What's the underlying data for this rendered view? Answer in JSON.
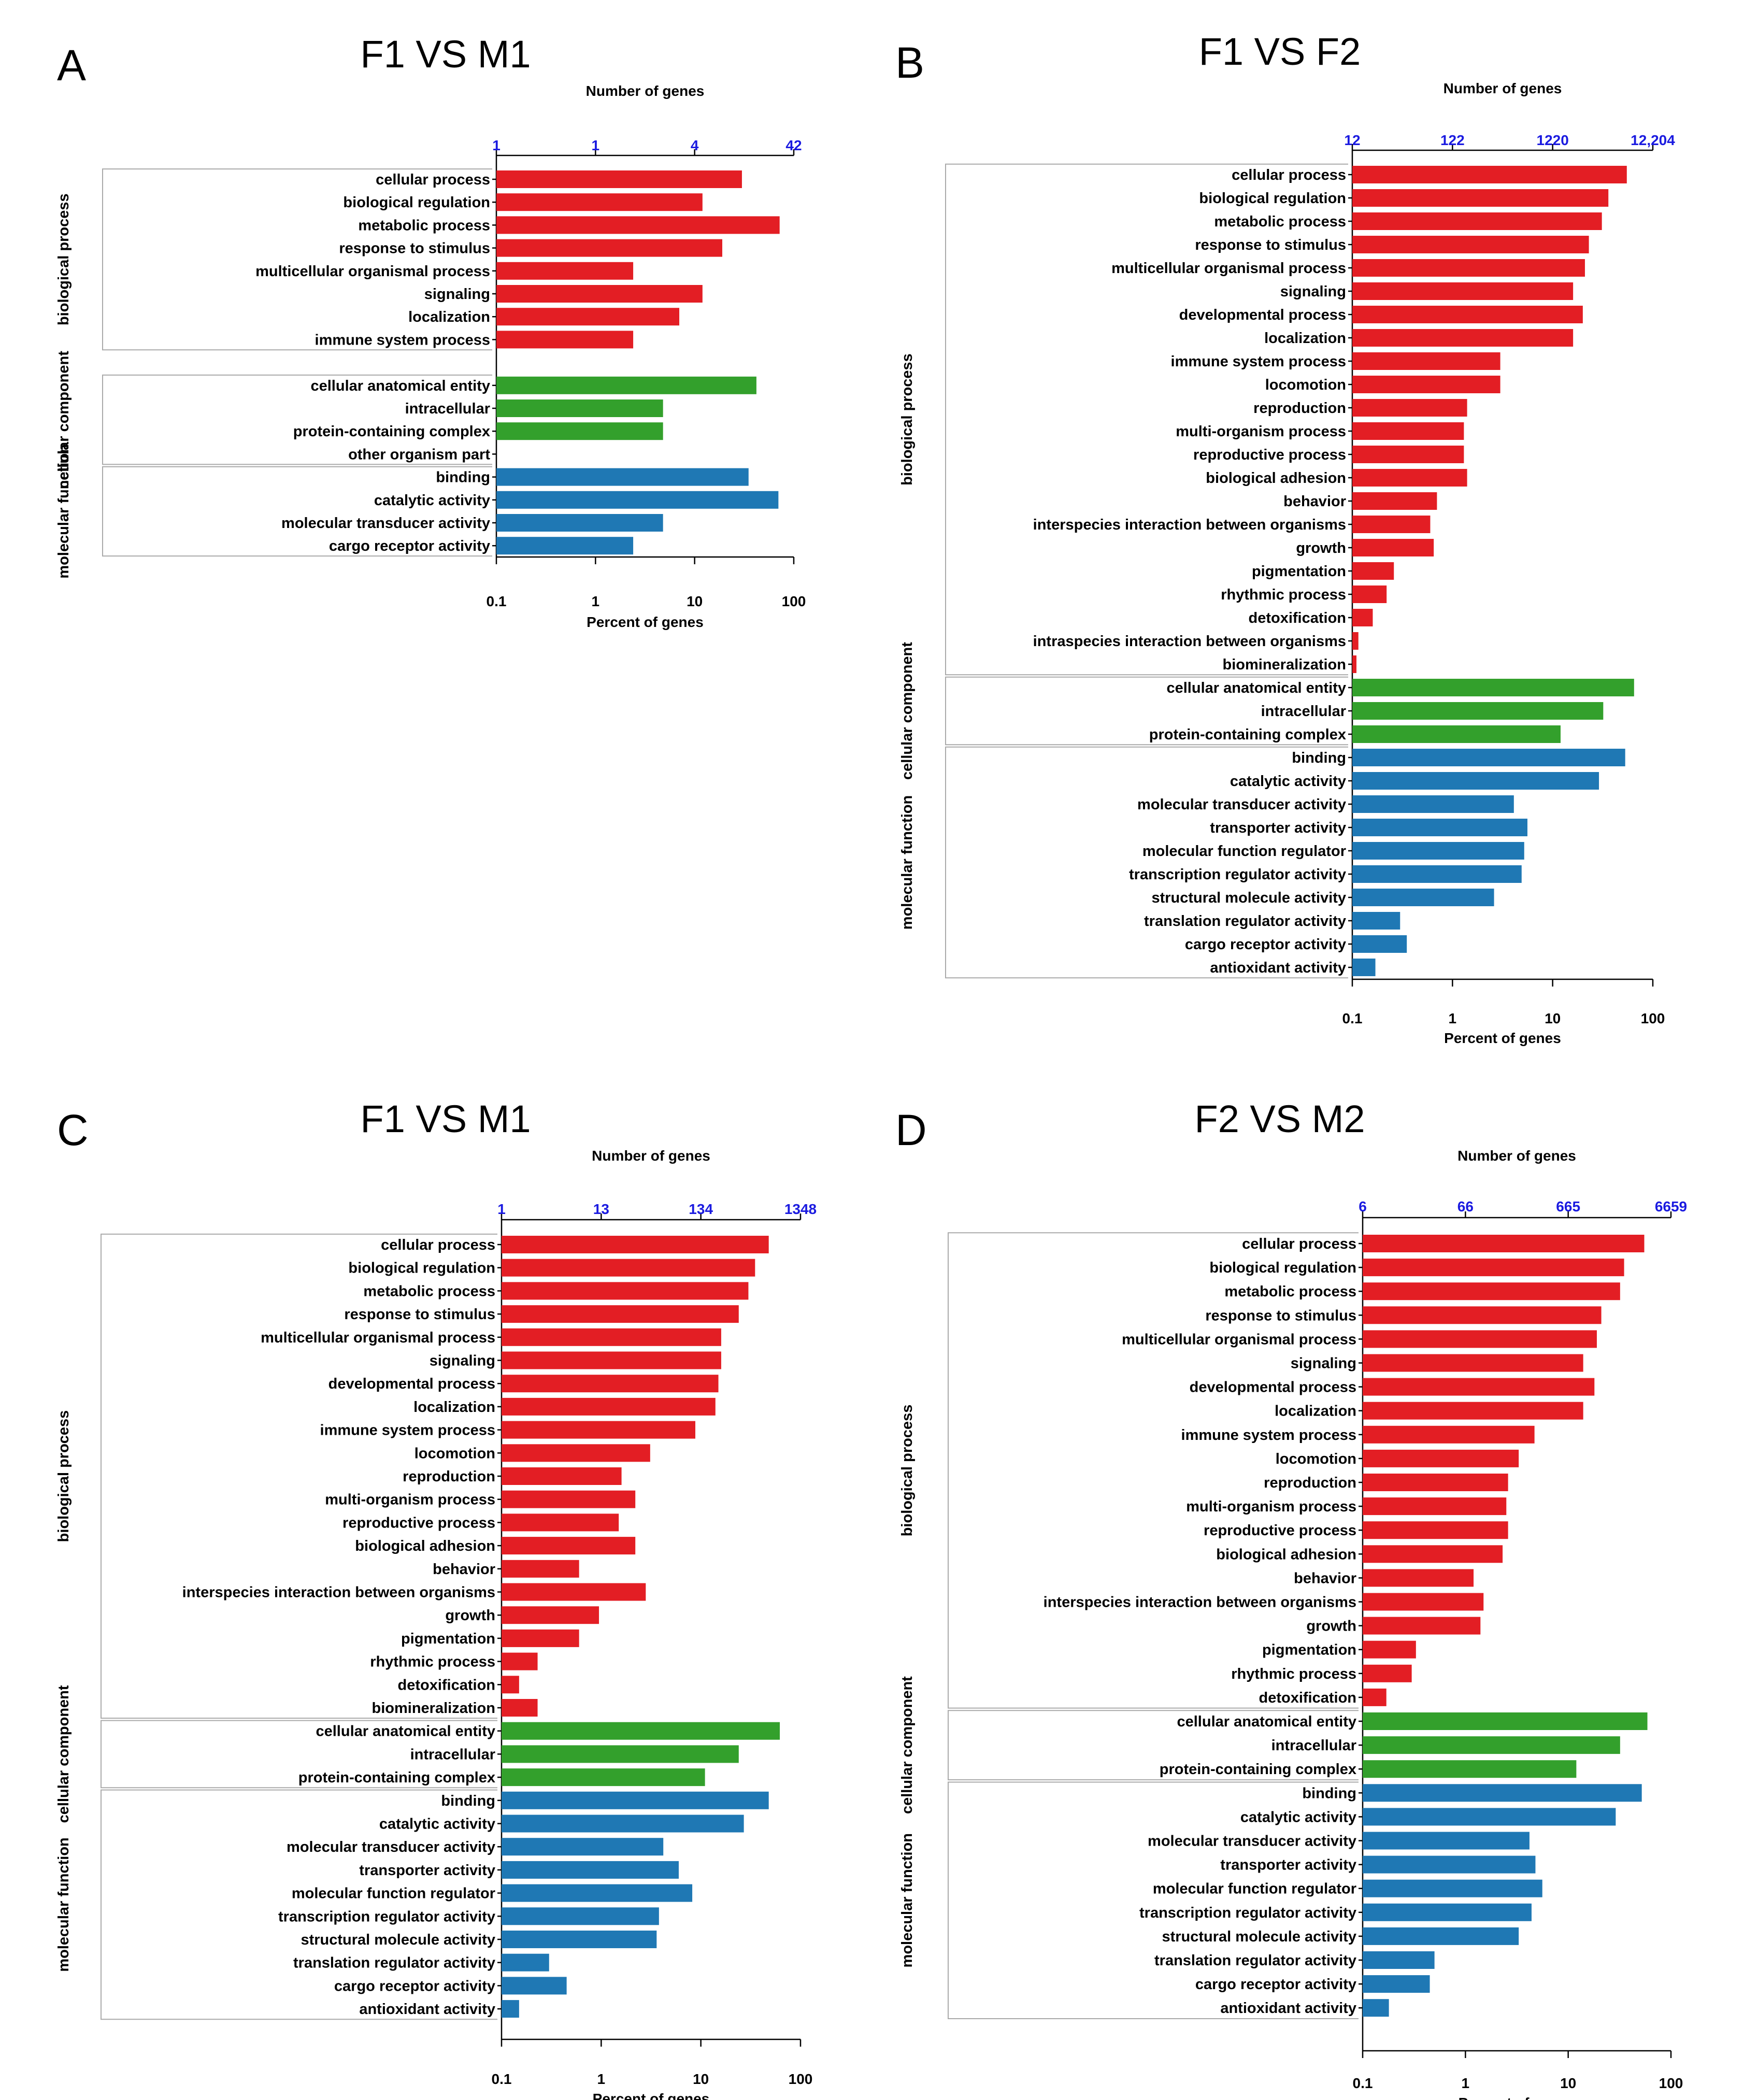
{
  "colors": {
    "biological process": "#e31e24",
    "cellular component": "#33a02c",
    "molecular function": "#1f78b4"
  },
  "chart_data": [
    {
      "type": "bar",
      "panel": "A",
      "title": "F1 VS M1",
      "xlabel": "Percent of genes",
      "x2label": "Number of genes",
      "xscale": "log",
      "xlim": [
        0.1,
        100
      ],
      "xticks": [
        "0.1",
        "1",
        "10",
        "100"
      ],
      "top_ticks": [
        "1",
        "1",
        "4",
        "42"
      ],
      "groups": [
        "biological process",
        "cellular component",
        "molecular function"
      ],
      "categories": [
        "cellular process",
        "biological regulation",
        "metabolic process",
        "response to stimulus",
        "multicellular organismal process",
        "signaling",
        "localization",
        "immune system process",
        "",
        "cellular anatomical entity",
        "intracellular",
        "protein-containing complex",
        "other organism part",
        "binding",
        "catalytic activity",
        "molecular transducer activity",
        "cargo receptor activity"
      ],
      "group_of": [
        "biological process",
        "biological process",
        "biological process",
        "biological process",
        "biological process",
        "biological process",
        "biological process",
        "biological process",
        "",
        "cellular component",
        "cellular component",
        "cellular component",
        "cellular component",
        "molecular function",
        "molecular function",
        "molecular function",
        "molecular function"
      ],
      "values": [
        30,
        12,
        72,
        19,
        2.4,
        12,
        7,
        2.4,
        0,
        42,
        4.8,
        4.8,
        0,
        35,
        70,
        4.8,
        2.4
      ]
    },
    {
      "type": "bar",
      "panel": "B",
      "title": "F1 VS F2",
      "xlabel": "Percent of genes",
      "x2label": "Number of genes",
      "xscale": "log",
      "xlim": [
        0.1,
        100
      ],
      "xticks": [
        "0.1",
        "1",
        "10",
        "100"
      ],
      "top_ticks": [
        "12",
        "122",
        "1220",
        "12,204"
      ],
      "groups": [
        "biological process",
        "cellular component",
        "molecular function"
      ],
      "categories": [
        "cellular process",
        "biological regulation",
        "metabolic process",
        "response to stimulus",
        "multicellular organismal process",
        "signaling",
        "developmental process",
        "localization",
        "immune system process",
        "locomotion",
        "reproduction",
        "multi-organism process",
        "reproductive process",
        "biological adhesion",
        "behavior",
        "interspecies interaction between organisms",
        "growth",
        "pigmentation",
        "rhythmic process",
        "detoxification",
        "intraspecies interaction between organisms",
        "biomineralization",
        "cellular anatomical entity",
        "intracellular",
        "protein-containing complex",
        "binding",
        "catalytic activity",
        "molecular transducer activity",
        "transporter activity",
        "molecular function regulator",
        "transcription regulator activity",
        "structural molecule activity",
        "translation regulator activity",
        "cargo receptor activity",
        "antioxidant activity"
      ],
      "group_of": [
        "biological process",
        "biological process",
        "biological process",
        "biological process",
        "biological process",
        "biological process",
        "biological process",
        "biological process",
        "biological process",
        "biological process",
        "biological process",
        "biological process",
        "biological process",
        "biological process",
        "biological process",
        "biological process",
        "biological process",
        "biological process",
        "biological process",
        "biological process",
        "biological process",
        "biological process",
        "cellular component",
        "cellular component",
        "cellular component",
        "molecular function",
        "molecular function",
        "molecular function",
        "molecular function",
        "molecular function",
        "molecular function",
        "molecular function",
        "molecular function",
        "molecular function",
        "molecular function"
      ],
      "values": [
        55,
        36,
        31,
        23,
        21,
        16,
        20,
        16,
        3.0,
        3.0,
        1.4,
        1.3,
        1.3,
        1.4,
        0.7,
        0.6,
        0.65,
        0.26,
        0.22,
        0.16,
        0.115,
        0.11,
        65,
        32,
        12,
        53,
        29,
        4.1,
        5.6,
        5.2,
        4.9,
        2.6,
        0.3,
        0.35,
        0.17
      ]
    },
    {
      "type": "bar",
      "panel": "C",
      "title": "F1 VS M1",
      "xlabel": "Percent of genes",
      "x2label": "Number of genes",
      "xscale": "log",
      "xlim": [
        0.1,
        100
      ],
      "xticks": [
        "0.1",
        "1",
        "10",
        "100"
      ],
      "top_ticks": [
        "1",
        "13",
        "134",
        "1348"
      ],
      "groups": [
        "biological process",
        "cellular component",
        "molecular function"
      ],
      "categories": [
        "cellular process",
        "biological regulation",
        "metabolic process",
        "response to stimulus",
        "multicellular organismal process",
        "signaling",
        "developmental process",
        "localization",
        "immune system process",
        "locomotion",
        "reproduction",
        "multi-organism process",
        "reproductive process",
        "biological adhesion",
        "behavior",
        "interspecies interaction between organisms",
        "growth",
        "pigmentation",
        "rhythmic process",
        "detoxification",
        "biomineralization",
        "cellular anatomical entity",
        "intracellular",
        "protein-containing complex",
        "binding",
        "catalytic activity",
        "molecular transducer activity",
        "transporter activity",
        "molecular function regulator",
        "transcription regulator activity",
        "structural molecule activity",
        "translation regulator activity",
        "cargo receptor activity",
        "antioxidant activity"
      ],
      "group_of": [
        "biological process",
        "biological process",
        "biological process",
        "biological process",
        "biological process",
        "biological process",
        "biological process",
        "biological process",
        "biological process",
        "biological process",
        "biological process",
        "biological process",
        "biological process",
        "biological process",
        "biological process",
        "biological process",
        "biological process",
        "biological process",
        "biological process",
        "biological process",
        "biological process",
        "cellular component",
        "cellular component",
        "cellular component",
        "molecular function",
        "molecular function",
        "molecular function",
        "molecular function",
        "molecular function",
        "molecular function",
        "molecular function",
        "molecular function",
        "molecular function",
        "molecular function"
      ],
      "values": [
        48,
        35,
        30,
        24,
        16,
        16,
        15,
        14,
        8.8,
        3.1,
        1.6,
        2.2,
        1.5,
        2.2,
        0.6,
        2.8,
        0.95,
        0.6,
        0.23,
        0.15,
        0.23,
        62,
        24,
        11,
        48,
        27,
        4.2,
        6.0,
        8.2,
        3.8,
        3.6,
        0.3,
        0.45,
        0.15
      ]
    },
    {
      "type": "bar",
      "panel": "D",
      "title": "F2 VS M2",
      "xlabel": "Percent of genes",
      "x2label": "Number of genes",
      "xscale": "log",
      "xlim": [
        0.1,
        100
      ],
      "xticks": [
        "0.1",
        "1",
        "10",
        "100"
      ],
      "top_ticks": [
        "6",
        "66",
        "665",
        "6659"
      ],
      "groups": [
        "biological process",
        "cellular component",
        "molecular function"
      ],
      "categories": [
        "cellular process",
        "biological regulation",
        "metabolic process",
        "response to stimulus",
        "multicellular organismal process",
        "signaling",
        "developmental process",
        "localization",
        "immune system process",
        "locomotion",
        "reproduction",
        "multi-organism process",
        "reproductive process",
        "biological adhesion",
        "behavior",
        "interspecies interaction between organisms",
        "growth",
        "pigmentation",
        "rhythmic process",
        "detoxification",
        "cellular anatomical entity",
        "intracellular",
        "protein-containing complex",
        "binding",
        "catalytic activity",
        "molecular transducer activity",
        "transporter activity",
        "molecular function regulator",
        "transcription regulator activity",
        "structural molecule activity",
        "translation regulator activity",
        "cargo receptor activity",
        "antioxidant activity"
      ],
      "group_of": [
        "biological process",
        "biological process",
        "biological process",
        "biological process",
        "biological process",
        "biological process",
        "biological process",
        "biological process",
        "biological process",
        "biological process",
        "biological process",
        "biological process",
        "biological process",
        "biological process",
        "biological process",
        "biological process",
        "biological process",
        "biological process",
        "biological process",
        "biological process",
        "cellular component",
        "cellular component",
        "cellular component",
        "molecular function",
        "molecular function",
        "molecular function",
        "molecular function",
        "molecular function",
        "molecular function",
        "molecular function",
        "molecular function",
        "molecular function",
        "molecular function"
      ],
      "values": [
        55,
        35,
        32,
        21,
        19,
        14,
        18,
        14,
        4.7,
        3.3,
        2.6,
        2.5,
        2.6,
        2.3,
        1.2,
        1.5,
        1.4,
        0.33,
        0.3,
        0.17,
        59,
        32,
        12,
        52,
        29,
        4.2,
        4.8,
        5.6,
        4.4,
        3.3,
        0.5,
        0.45,
        0.18
      ]
    }
  ]
}
